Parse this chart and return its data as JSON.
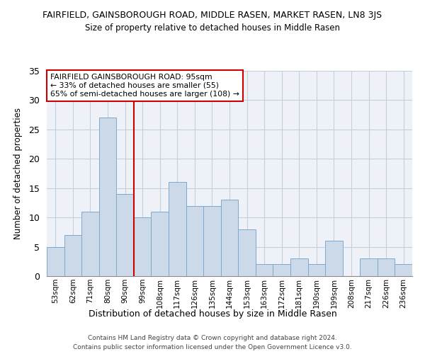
{
  "title_line1": "FAIRFIELD, GAINSBOROUGH ROAD, MIDDLE RASEN, MARKET RASEN, LN8 3JS",
  "title_line2": "Size of property relative to detached houses in Middle Rasen",
  "xlabel": "Distribution of detached houses by size in Middle Rasen",
  "ylabel": "Number of detached properties",
  "bar_labels": [
    "53sqm",
    "62sqm",
    "71sqm",
    "80sqm",
    "90sqm",
    "99sqm",
    "108sqm",
    "117sqm",
    "126sqm",
    "135sqm",
    "144sqm",
    "153sqm",
    "163sqm",
    "172sqm",
    "181sqm",
    "190sqm",
    "199sqm",
    "208sqm",
    "217sqm",
    "226sqm",
    "236sqm"
  ],
  "bar_values": [
    5,
    7,
    11,
    27,
    14,
    10,
    11,
    16,
    12,
    12,
    13,
    8,
    2,
    2,
    3,
    2,
    6,
    0,
    3,
    3,
    2
  ],
  "bar_color": "#ccd9e8",
  "bar_edge_color": "#7da8cc",
  "vline_x": 4.5,
  "vline_color": "#cc0000",
  "annotation_text": "FAIRFIELD GAINSBOROUGH ROAD: 95sqm\n← 33% of detached houses are smaller (55)\n65% of semi-detached houses are larger (108) →",
  "annotation_box_color": "#ffffff",
  "annotation_box_edge": "#cc0000",
  "ylim": [
    0,
    35
  ],
  "yticks": [
    0,
    5,
    10,
    15,
    20,
    25,
    30,
    35
  ],
  "bg_color": "#eef2f8",
  "grid_color": "#c5cfd8",
  "footer_line1": "Contains HM Land Registry data © Crown copyright and database right 2024.",
  "footer_line2": "Contains public sector information licensed under the Open Government Licence v3.0."
}
